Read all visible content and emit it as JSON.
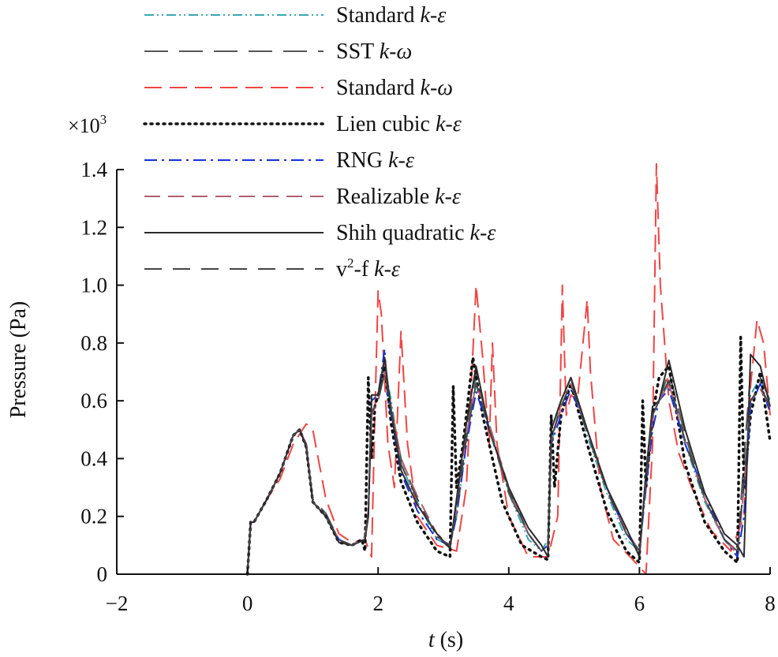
{
  "chart_data": {
    "type": "line",
    "title": "",
    "xlabel_var": "t",
    "xlabel_unit": "(s)",
    "ylabel": "Pressure (Pa)",
    "y_multiplier": "×10",
    "y_multiplier_exp": "3",
    "xlim": [
      -2,
      8
    ],
    "ylim": [
      0,
      1.4
    ],
    "xticks": [
      -2,
      0,
      2,
      4,
      6,
      8
    ],
    "yticks": [
      0,
      0.2,
      0.4,
      0.6,
      0.8,
      1.0,
      1.2,
      1.4
    ],
    "ytick_labels": [
      "0",
      "0.2",
      "0.4",
      "0.6",
      "0.8",
      "1.0",
      "1.2",
      "1.4"
    ],
    "xtick_labels": [
      "−2",
      "0",
      "2",
      "4",
      "6",
      "8"
    ],
    "legend_position": "top-left",
    "series": [
      {
        "name": "Standard k-ε",
        "name_plain": "Standard ",
        "name_model": "k-ε",
        "color": "#3aa6b0",
        "dash": "12 4 2 4 2 4",
        "x": [
          0,
          0.05,
          0.1,
          0.3,
          0.5,
          0.7,
          0.8,
          0.9,
          1.0,
          1.2,
          1.4,
          1.6,
          1.8,
          1.85,
          1.9,
          2.0,
          2.1,
          2.2,
          2.35,
          2.6,
          2.9,
          3.1,
          3.2,
          3.35,
          3.5,
          3.7,
          4.0,
          4.3,
          4.5,
          4.6,
          4.65,
          4.8,
          4.95,
          5.2,
          5.5,
          5.8,
          6.0,
          6.1,
          6.2,
          6.3,
          6.45,
          6.7,
          7.0,
          7.3,
          7.5,
          7.6,
          7.7,
          7.85,
          8.0
        ],
        "y": [
          0.0,
          0.18,
          0.18,
          0.26,
          0.35,
          0.48,
          0.5,
          0.45,
          0.25,
          0.2,
          0.12,
          0.1,
          0.12,
          0.2,
          0.55,
          0.62,
          0.72,
          0.6,
          0.38,
          0.25,
          0.12,
          0.1,
          0.2,
          0.45,
          0.68,
          0.52,
          0.28,
          0.12,
          0.08,
          0.12,
          0.45,
          0.6,
          0.68,
          0.48,
          0.28,
          0.12,
          0.08,
          0.3,
          0.55,
          0.6,
          0.66,
          0.45,
          0.25,
          0.12,
          0.08,
          0.3,
          0.62,
          0.68,
          0.6
        ]
      },
      {
        "name": "SST k-ω",
        "name_plain": "SST ",
        "name_model": "k-ω",
        "color": "#555555",
        "dash": "30 14",
        "x": [
          0,
          0.05,
          0.1,
          0.3,
          0.5,
          0.7,
          0.8,
          0.9,
          1.0,
          1.2,
          1.4,
          1.6,
          1.8,
          1.85,
          1.9,
          2.0,
          2.1,
          2.2,
          2.35,
          2.6,
          2.9,
          3.1,
          3.2,
          3.35,
          3.5,
          3.7,
          4.0,
          4.3,
          4.5,
          4.6,
          4.65,
          4.8,
          4.95,
          5.2,
          5.5,
          5.8,
          6.0,
          6.1,
          6.2,
          6.3,
          6.45,
          6.7,
          7.0,
          7.3,
          7.5,
          7.6,
          7.7,
          7.85,
          8.0
        ],
        "y": [
          0.0,
          0.18,
          0.18,
          0.26,
          0.35,
          0.48,
          0.5,
          0.44,
          0.26,
          0.21,
          0.12,
          0.1,
          0.12,
          0.22,
          0.58,
          0.6,
          0.7,
          0.58,
          0.4,
          0.26,
          0.13,
          0.09,
          0.25,
          0.5,
          0.7,
          0.5,
          0.28,
          0.14,
          0.08,
          0.1,
          0.5,
          0.6,
          0.68,
          0.5,
          0.3,
          0.14,
          0.08,
          0.35,
          0.58,
          0.6,
          0.7,
          0.48,
          0.26,
          0.12,
          0.08,
          0.4,
          0.7,
          0.68,
          0.6
        ]
      },
      {
        "name": "Standard k-ω",
        "name_plain": "Standard ",
        "name_model": "k-ω",
        "color": "#f04444",
        "dash": "22 10",
        "x": [
          0,
          0.05,
          0.1,
          0.3,
          0.5,
          0.7,
          0.9,
          1.0,
          1.1,
          1.2,
          1.4,
          1.6,
          1.8,
          1.9,
          1.95,
          2.0,
          2.05,
          2.15,
          2.25,
          2.35,
          2.45,
          2.6,
          2.9,
          3.2,
          3.35,
          3.5,
          3.6,
          3.7,
          3.75,
          3.82,
          4.0,
          4.3,
          4.6,
          4.75,
          4.82,
          4.88,
          4.95,
          5.05,
          5.2,
          5.25,
          5.4,
          5.6,
          5.9,
          6.1,
          6.2,
          6.26,
          6.32,
          6.45,
          6.6,
          6.8,
          7.1,
          7.4,
          7.6,
          7.7,
          7.8,
          7.9,
          8.0
        ],
        "y": [
          0.0,
          0.18,
          0.18,
          0.26,
          0.33,
          0.45,
          0.52,
          0.5,
          0.38,
          0.26,
          0.14,
          0.11,
          0.12,
          0.06,
          0.55,
          0.98,
          0.9,
          0.45,
          0.3,
          0.84,
          0.45,
          0.2,
          0.1,
          0.08,
          0.3,
          1.0,
          0.75,
          0.45,
          0.8,
          0.45,
          0.2,
          0.06,
          0.06,
          0.2,
          1.0,
          0.55,
          0.62,
          0.6,
          0.95,
          0.7,
          0.3,
          0.12,
          0.05,
          0.0,
          0.45,
          1.42,
          1.0,
          0.6,
          0.42,
          0.3,
          0.15,
          0.08,
          0.2,
          0.65,
          0.88,
          0.8,
          0.55
        ]
      },
      {
        "name": "Lien cubic k-ε",
        "name_plain": "Lien cubic ",
        "name_model": "k-ε",
        "color": "#111111",
        "dash": "2 6",
        "x": [
          0,
          0.05,
          0.1,
          0.3,
          0.5,
          0.7,
          0.8,
          0.9,
          1.0,
          1.2,
          1.4,
          1.6,
          1.75,
          1.8,
          1.85,
          1.9,
          1.95,
          2.0,
          2.1,
          2.2,
          2.35,
          2.6,
          2.9,
          3.1,
          3.15,
          3.2,
          3.3,
          3.45,
          3.6,
          3.9,
          4.2,
          4.5,
          4.6,
          4.65,
          4.7,
          4.8,
          4.95,
          5.2,
          5.5,
          5.8,
          6.0,
          6.05,
          6.1,
          6.2,
          6.3,
          6.45,
          6.7,
          7.0,
          7.3,
          7.5,
          7.55,
          7.6,
          7.7,
          7.85,
          8.0
        ],
        "y": [
          0.0,
          0.18,
          0.18,
          0.26,
          0.35,
          0.48,
          0.5,
          0.44,
          0.25,
          0.2,
          0.11,
          0.1,
          0.12,
          0.08,
          0.68,
          0.4,
          0.58,
          0.62,
          0.72,
          0.52,
          0.32,
          0.18,
          0.08,
          0.06,
          0.65,
          0.3,
          0.45,
          0.75,
          0.55,
          0.25,
          0.1,
          0.06,
          0.05,
          0.55,
          0.3,
          0.55,
          0.66,
          0.45,
          0.22,
          0.08,
          0.04,
          0.6,
          0.3,
          0.55,
          0.68,
          0.72,
          0.38,
          0.18,
          0.08,
          0.04,
          0.82,
          0.3,
          0.55,
          0.7,
          0.46
        ]
      },
      {
        "name": "RNG k-ε",
        "name_plain": "RNG ",
        "name_model": "k-ε",
        "color": "#1530d8",
        "dash": "16 6 3 6",
        "x": [
          0,
          0.05,
          0.1,
          0.3,
          0.5,
          0.7,
          0.8,
          0.9,
          1.0,
          1.2,
          1.4,
          1.6,
          1.8,
          1.85,
          1.9,
          2.0,
          2.1,
          2.15,
          2.2,
          2.35,
          2.6,
          2.9,
          3.1,
          3.2,
          3.35,
          3.5,
          3.7,
          4.0,
          4.3,
          4.5,
          4.6,
          4.65,
          4.8,
          4.95,
          5.2,
          5.5,
          5.8,
          6.0,
          6.1,
          6.2,
          6.3,
          6.45,
          6.7,
          7.0,
          7.3,
          7.5,
          7.6,
          7.7,
          7.85,
          8.0
        ],
        "y": [
          0.0,
          0.18,
          0.18,
          0.26,
          0.35,
          0.48,
          0.5,
          0.45,
          0.25,
          0.2,
          0.12,
          0.1,
          0.12,
          0.2,
          0.6,
          0.62,
          0.78,
          0.6,
          0.55,
          0.35,
          0.22,
          0.12,
          0.1,
          0.2,
          0.45,
          0.63,
          0.5,
          0.3,
          0.14,
          0.08,
          0.1,
          0.45,
          0.55,
          0.64,
          0.5,
          0.3,
          0.14,
          0.08,
          0.3,
          0.5,
          0.6,
          0.64,
          0.45,
          0.28,
          0.12,
          0.06,
          0.2,
          0.58,
          0.66,
          0.56
        ]
      },
      {
        "name": "Realizable k-ε",
        "name_plain": "Realizable ",
        "name_model": "k-ε",
        "color": "#b06070",
        "dash": "20 10",
        "x": [
          0,
          0.05,
          0.1,
          0.3,
          0.5,
          0.7,
          0.8,
          0.9,
          1.0,
          1.2,
          1.4,
          1.6,
          1.8,
          1.85,
          1.9,
          2.0,
          2.1,
          2.2,
          2.35,
          2.6,
          2.9,
          3.1,
          3.2,
          3.35,
          3.5,
          3.7,
          4.0,
          4.3,
          4.5,
          4.6,
          4.65,
          4.8,
          4.95,
          5.2,
          5.5,
          5.8,
          6.0,
          6.1,
          6.2,
          6.3,
          6.45,
          6.7,
          7.0,
          7.3,
          7.5,
          7.6,
          7.7,
          7.85,
          8.0
        ],
        "y": [
          0.0,
          0.18,
          0.18,
          0.26,
          0.35,
          0.48,
          0.5,
          0.45,
          0.25,
          0.2,
          0.12,
          0.1,
          0.13,
          0.22,
          0.55,
          0.6,
          0.7,
          0.58,
          0.4,
          0.27,
          0.14,
          0.1,
          0.22,
          0.48,
          0.66,
          0.52,
          0.3,
          0.14,
          0.08,
          0.1,
          0.46,
          0.58,
          0.66,
          0.5,
          0.3,
          0.15,
          0.08,
          0.32,
          0.55,
          0.6,
          0.66,
          0.46,
          0.26,
          0.12,
          0.07,
          0.3,
          0.6,
          0.64,
          0.58
        ]
      },
      {
        "name": "Shih quadratic k-ε",
        "name_plain": "Shih quadratic ",
        "name_model": "k-ε",
        "color": "#2b2b2b",
        "dash": "",
        "x": [
          0,
          0.05,
          0.1,
          0.3,
          0.5,
          0.7,
          0.8,
          0.9,
          1.0,
          1.2,
          1.4,
          1.6,
          1.8,
          1.85,
          1.9,
          2.0,
          2.1,
          2.2,
          2.35,
          2.6,
          2.9,
          3.1,
          3.2,
          3.35,
          3.5,
          3.7,
          4.0,
          4.3,
          4.5,
          4.6,
          4.65,
          4.8,
          4.95,
          5.2,
          5.5,
          5.8,
          6.0,
          6.1,
          6.2,
          6.3,
          6.45,
          6.7,
          7.0,
          7.3,
          7.5,
          7.6,
          7.7,
          7.85,
          8.0
        ],
        "y": [
          0.0,
          0.18,
          0.18,
          0.26,
          0.35,
          0.48,
          0.5,
          0.44,
          0.25,
          0.2,
          0.11,
          0.1,
          0.12,
          0.2,
          0.62,
          0.62,
          0.75,
          0.56,
          0.36,
          0.24,
          0.14,
          0.09,
          0.26,
          0.52,
          0.72,
          0.5,
          0.3,
          0.16,
          0.1,
          0.06,
          0.5,
          0.6,
          0.68,
          0.5,
          0.3,
          0.16,
          0.06,
          0.35,
          0.58,
          0.6,
          0.74,
          0.5,
          0.28,
          0.14,
          0.1,
          0.06,
          0.76,
          0.72,
          0.58
        ]
      },
      {
        "name": "v²-f k-ε",
        "name_plain": "v",
        "name_sup": "2",
        "name_rest": "-f ",
        "name_model": "k-ε",
        "color": "#444444",
        "dash": "22 14",
        "x": [
          0,
          0.05,
          0.1,
          0.3,
          0.5,
          0.7,
          0.8,
          0.9,
          1.0,
          1.2,
          1.4,
          1.6,
          1.8,
          1.85,
          1.9,
          2.0,
          2.1,
          2.2,
          2.35,
          2.6,
          2.9,
          3.1,
          3.2,
          3.35,
          3.5,
          3.7,
          4.0,
          4.3,
          4.5,
          4.6,
          4.65,
          4.8,
          4.95,
          5.2,
          5.5,
          5.8,
          6.0,
          6.1,
          6.2,
          6.3,
          6.45,
          6.7,
          7.0,
          7.3,
          7.5,
          7.6,
          7.7,
          7.85,
          8.0
        ],
        "y": [
          0.0,
          0.18,
          0.18,
          0.26,
          0.35,
          0.48,
          0.5,
          0.45,
          0.25,
          0.2,
          0.12,
          0.1,
          0.12,
          0.21,
          0.56,
          0.6,
          0.7,
          0.57,
          0.38,
          0.26,
          0.13,
          0.1,
          0.22,
          0.47,
          0.66,
          0.5,
          0.29,
          0.14,
          0.08,
          0.1,
          0.47,
          0.58,
          0.66,
          0.49,
          0.29,
          0.14,
          0.08,
          0.32,
          0.55,
          0.6,
          0.67,
          0.46,
          0.26,
          0.12,
          0.08,
          0.32,
          0.6,
          0.65,
          0.58
        ]
      }
    ]
  }
}
